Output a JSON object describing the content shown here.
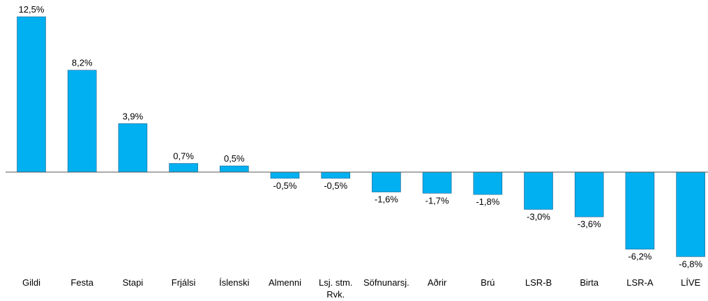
{
  "chart_data": {
    "type": "bar",
    "categories": [
      "Gildi",
      "Festa",
      "Stapi",
      "Frjálsi",
      "Íslenski",
      "Almenni",
      "Lsj. stm. Rvk.",
      "Söfnunarsj.",
      "Aðrir",
      "Brú",
      "LSR-B",
      "Birta",
      "LSR-A",
      "LÍVE"
    ],
    "values": [
      12.5,
      8.2,
      3.9,
      0.7,
      0.5,
      -0.5,
      -0.5,
      -1.6,
      -1.7,
      -1.8,
      -3.0,
      -3.6,
      -6.2,
      -6.8
    ],
    "value_labels": [
      "12,5%",
      "8,2%",
      "3,9%",
      "0,7%",
      "0,5%",
      "-0,5%",
      "-0,5%",
      "-1,6%",
      "-1,7%",
      "-1,8%",
      "-3,0%",
      "-3,6%",
      "-6,2%",
      "-6,8%"
    ],
    "color": "#00b0f0",
    "ylim": [
      -7.5,
      13.5
    ]
  }
}
